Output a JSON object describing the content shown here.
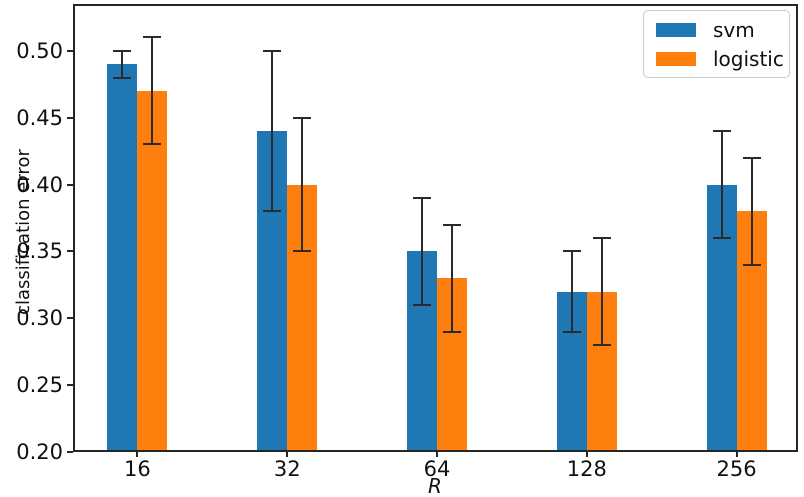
{
  "chart_data": {
    "type": "bar",
    "title": "",
    "xlabel": "R",
    "ylabel": "classification error",
    "categories": [
      "16",
      "32",
      "64",
      "128",
      "256"
    ],
    "positions": [
      0,
      1,
      2,
      3,
      4
    ],
    "series": [
      {
        "name": "svm",
        "color": "#1f77b4",
        "values": [
          0.49,
          0.44,
          0.35,
          0.32,
          0.4
        ],
        "errors": [
          0.01,
          0.06,
          0.04,
          0.03,
          0.04
        ]
      },
      {
        "name": "logistic",
        "color": "#ff7f0e",
        "values": [
          0.47,
          0.4,
          0.33,
          0.32,
          0.38
        ],
        "errors": [
          0.04,
          0.05,
          0.04,
          0.04,
          0.04
        ]
      }
    ],
    "error_bar_color": "#2b2b2b",
    "bar_width": 0.2,
    "ylim": [
      0.2,
      0.535
    ],
    "xlim": [
      -0.43,
      4.41
    ],
    "yticks": [
      0.2,
      0.25,
      0.3,
      0.35,
      0.4,
      0.45,
      0.5
    ],
    "ytick_format_decimals": 2,
    "grid": false,
    "legend_position": "upper right"
  }
}
